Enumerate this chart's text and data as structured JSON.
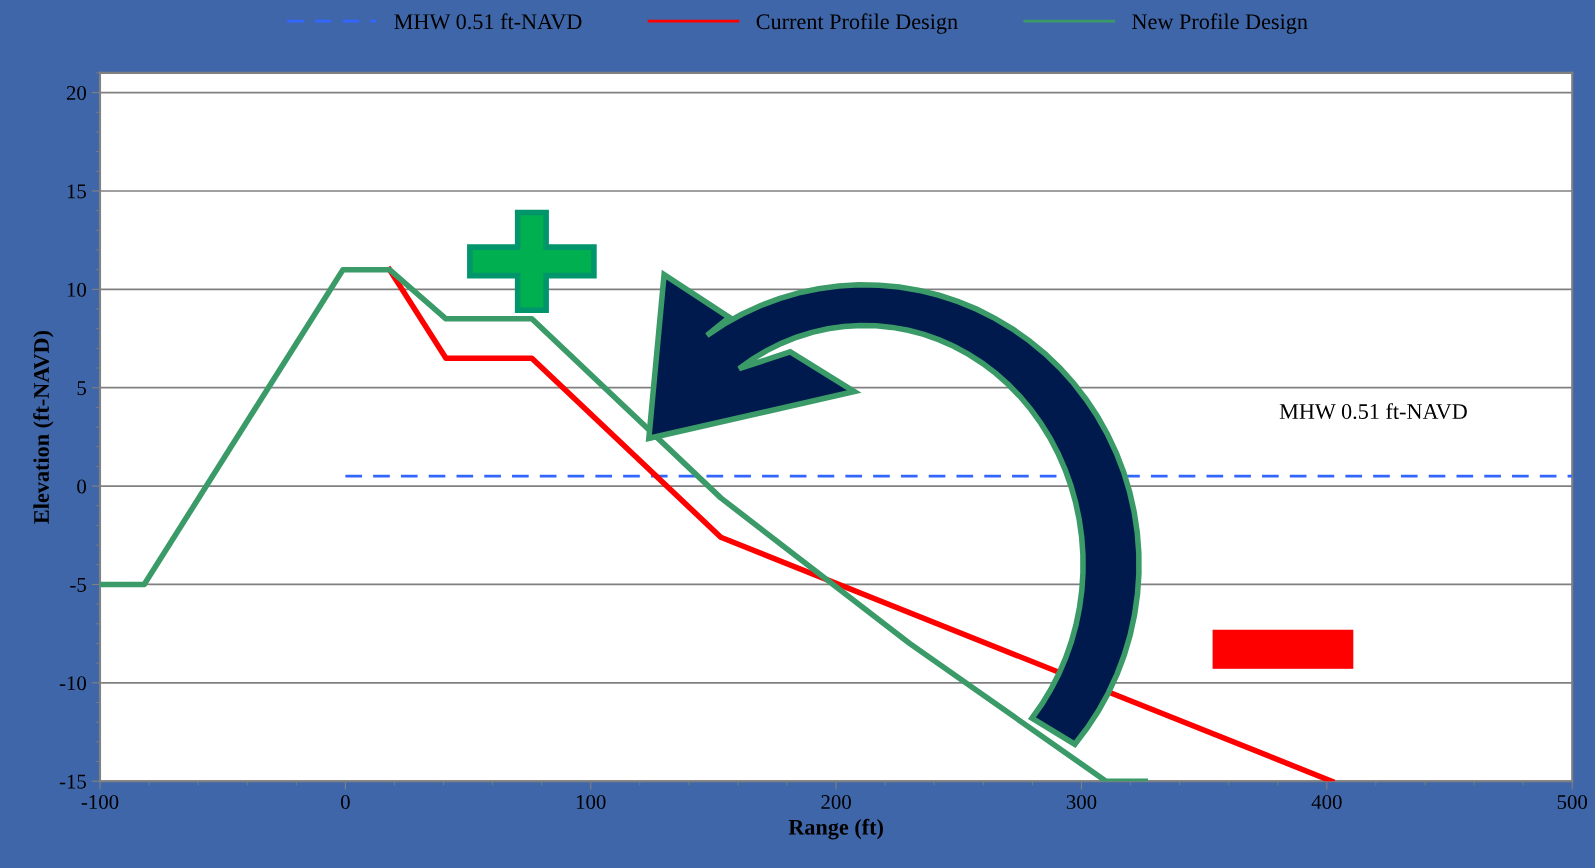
{
  "chart_data": {
    "type": "line",
    "xlabel": "Range (ft)",
    "ylabel": "Elevation (ft-NAVD)",
    "xlim": [
      -100,
      500
    ],
    "xticks": [
      -100,
      0,
      100,
      200,
      300,
      400,
      500
    ],
    "ylim": [
      -15,
      21
    ],
    "yticks": [
      -15,
      -10,
      -5,
      0,
      5,
      10,
      15,
      20
    ],
    "grid": "y",
    "legend": "top",
    "line_style": "solid",
    "marker": "none",
    "series": [
      {
        "name": "MHW 0.51 ft-NAVD",
        "color": "#3366ff",
        "line_style": "dashed",
        "x": [
          0,
          500
        ],
        "values": [
          0.51,
          0.51
        ]
      },
      {
        "name": "Current Profile Design",
        "color": "#ff0000",
        "x": [
          18,
          41,
          76,
          153,
          402
        ],
        "values": [
          11,
          6.5,
          6.5,
          -2.6,
          -15
        ]
      },
      {
        "name": "New Profile Design",
        "color": "#3a9a68",
        "x": [
          -100,
          -82,
          -1,
          18,
          41,
          76,
          153,
          230,
          310,
          326
        ],
        "values": [
          -5,
          -5,
          11,
          11,
          8.5,
          8.5,
          -0.6,
          -8,
          -15,
          -15
        ]
      }
    ],
    "annotations": [
      "MHW 0.51 ft-NAVD"
    ]
  }
}
